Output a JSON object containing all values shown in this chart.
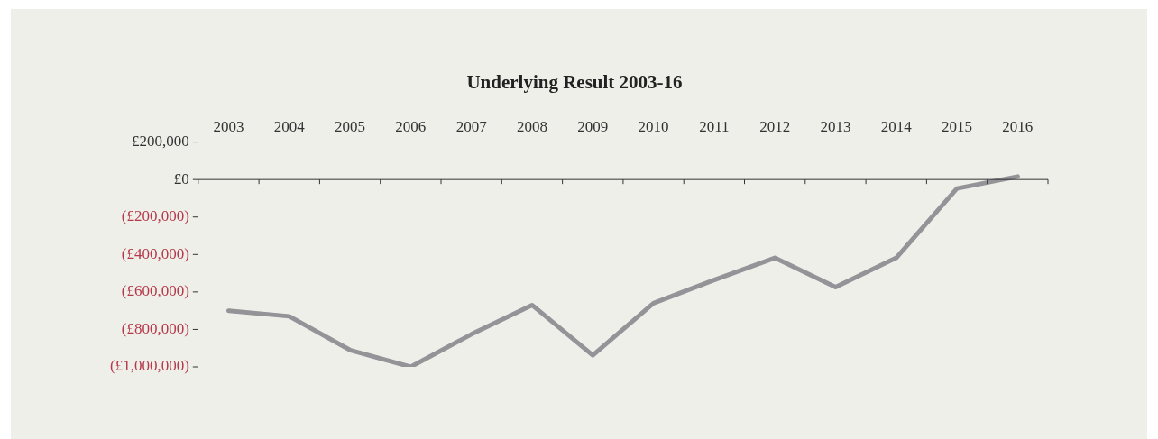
{
  "chart_data": {
    "type": "line",
    "title": "Underlying Result 2003-16",
    "categories": [
      "2003",
      "2004",
      "2005",
      "2006",
      "2007",
      "2008",
      "2009",
      "2010",
      "2011",
      "2012",
      "2013",
      "2014",
      "2015",
      "2016"
    ],
    "series": [
      {
        "color": "#939398",
        "values": [
          -700000,
          -730000,
          -910000,
          -1000000,
          -826000,
          -670000,
          -938000,
          -660000,
          -536000,
          -418000,
          -574000,
          -418000,
          -48000,
          16000
        ]
      }
    ],
    "ylim": [
      -1000000,
      200000
    ],
    "yticks": [
      {
        "value": 200000,
        "label": "£200,000"
      },
      {
        "value": 0,
        "label": "£0"
      },
      {
        "value": -200000,
        "label": "(£200,000)"
      },
      {
        "value": -400000,
        "label": "(£400,000)"
      },
      {
        "value": -600000,
        "label": "(£600,000)"
      },
      {
        "value": -800000,
        "label": "(£800,000)"
      },
      {
        "value": -1000000,
        "label": "(£1,000,000)"
      }
    ],
    "ref_lines": [
      {
        "axis": "y",
        "value": 0,
        "color": "#333333",
        "line_style": "solid"
      }
    ],
    "grid": false,
    "legend": false,
    "marker": "none",
    "line_style": "solid"
  }
}
